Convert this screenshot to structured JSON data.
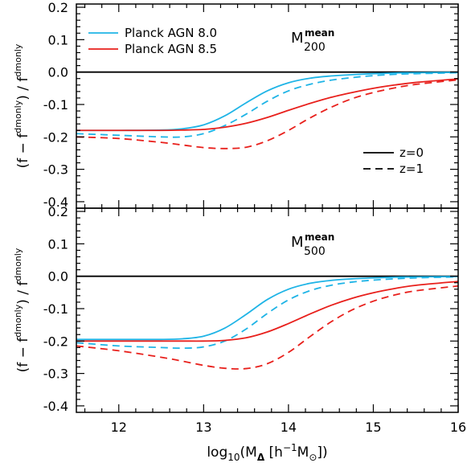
{
  "chart_data": [
    {
      "type": "line",
      "panel_label": {
        "base": "M",
        "sup": "mean",
        "sub": "200"
      },
      "ylabel": "(f − f^dmonly) / f^dmonly",
      "ylabel_parts": {
        "open": "(f − f",
        "sup1": "dmonly",
        "mid": ") / f",
        "sup2": "dmonly"
      },
      "xlim": [
        11.5,
        16.0
      ],
      "ylim": [
        -0.42,
        0.21
      ],
      "yticks": [
        "0.2",
        "0.1",
        "0.0",
        "-0.1",
        "-0.2",
        "-0.3",
        "-0.4"
      ],
      "ytick_values": [
        0.2,
        0.1,
        0.0,
        -0.1,
        -0.2,
        -0.3,
        -0.4
      ],
      "reference_line": 0.0,
      "legend": {
        "models": [
          {
            "label": "Planck AGN 8.0",
            "color": "#1fb4e6"
          },
          {
            "label": "Planck AGN 8.5",
            "color": "#e8201c"
          }
        ],
        "redshifts": [
          {
            "label": "z=0",
            "style": "solid"
          },
          {
            "label": "z=1",
            "style": "dashed"
          }
        ]
      },
      "x": [
        11.5,
        12.0,
        12.5,
        12.75,
        13.0,
        13.25,
        13.5,
        13.75,
        14.0,
        14.25,
        14.5,
        14.75,
        15.0,
        15.25,
        15.5,
        16.0
      ],
      "series": [
        {
          "model": "Planck AGN 8.0",
          "redshift": "z=0",
          "color": "#1fb4e6",
          "dash": "solid",
          "y": [
            -0.18,
            -0.18,
            -0.179,
            -0.175,
            -0.163,
            -0.135,
            -0.095,
            -0.058,
            -0.033,
            -0.019,
            -0.012,
            -0.008,
            -0.005,
            -0.003,
            -0.002,
            -0.001
          ]
        },
        {
          "model": "Planck AGN 8.0",
          "redshift": "z=1",
          "color": "#1fb4e6",
          "dash": "dashed",
          "y": [
            -0.19,
            -0.195,
            -0.2,
            -0.2,
            -0.19,
            -0.165,
            -0.13,
            -0.09,
            -0.058,
            -0.038,
            -0.025,
            -0.017,
            -0.011,
            -0.007,
            -0.005,
            -0.002
          ]
        },
        {
          "model": "Planck AGN 8.5",
          "redshift": "z=0",
          "color": "#e8201c",
          "dash": "solid",
          "y": [
            -0.18,
            -0.18,
            -0.18,
            -0.179,
            -0.177,
            -0.17,
            -0.158,
            -0.14,
            -0.118,
            -0.097,
            -0.078,
            -0.063,
            -0.05,
            -0.04,
            -0.032,
            -0.021
          ]
        },
        {
          "model": "Planck AGN 8.5",
          "redshift": "z=1",
          "color": "#e8201c",
          "dash": "dashed",
          "y": [
            -0.2,
            -0.205,
            -0.217,
            -0.225,
            -0.233,
            -0.236,
            -0.232,
            -0.212,
            -0.18,
            -0.142,
            -0.109,
            -0.082,
            -0.063,
            -0.049,
            -0.038,
            -0.024
          ]
        }
      ]
    },
    {
      "type": "line",
      "panel_label": {
        "base": "M",
        "sup": "mean",
        "sub": "500"
      },
      "ylabel": "(f − f^dmonly) / f^dmonly",
      "ylabel_parts": {
        "open": "(f − f",
        "sup1": "dmonly",
        "mid": ") / f",
        "sup2": "dmonly"
      },
      "xlim": [
        11.5,
        16.0
      ],
      "ylim": [
        -0.42,
        0.21
      ],
      "yticks": [
        "0.2",
        "0.1",
        "0.0",
        "-0.1",
        "-0.2",
        "-0.3",
        "-0.4"
      ],
      "ytick_values": [
        0.2,
        0.1,
        0.0,
        -0.1,
        -0.2,
        -0.3,
        -0.4
      ],
      "xticks": [
        "12",
        "13",
        "14",
        "15",
        "16"
      ],
      "xtick_values": [
        12,
        13,
        14,
        15,
        16
      ],
      "xlabel_parts": {
        "open": "log",
        "sub": "10",
        "mid": "(M",
        "sub2": "Δ",
        "mid2": " [h",
        "sup": "−1",
        "mid3": "M",
        "sub3": "⊙",
        "close": "])"
      },
      "reference_line": 0.0,
      "x": [
        11.5,
        12.0,
        12.5,
        12.75,
        13.0,
        13.25,
        13.5,
        13.75,
        14.0,
        14.25,
        14.5,
        14.75,
        15.0,
        15.25,
        15.5,
        16.0
      ],
      "series": [
        {
          "model": "Planck AGN 8.0",
          "redshift": "z=0",
          "color": "#1fb4e6",
          "dash": "solid",
          "y": [
            -0.195,
            -0.195,
            -0.195,
            -0.193,
            -0.185,
            -0.16,
            -0.118,
            -0.072,
            -0.04,
            -0.022,
            -0.013,
            -0.008,
            -0.005,
            -0.003,
            -0.002,
            -0.001
          ]
        },
        {
          "model": "Planck AGN 8.0",
          "redshift": "z=1",
          "color": "#1fb4e6",
          "dash": "dashed",
          "y": [
            -0.205,
            -0.215,
            -0.22,
            -0.222,
            -0.218,
            -0.2,
            -0.163,
            -0.115,
            -0.073,
            -0.045,
            -0.028,
            -0.018,
            -0.012,
            -0.008,
            -0.005,
            -0.002
          ]
        },
        {
          "model": "Planck AGN 8.5",
          "redshift": "z=0",
          "color": "#e8201c",
          "dash": "solid",
          "y": [
            -0.2,
            -0.2,
            -0.2,
            -0.2,
            -0.2,
            -0.198,
            -0.19,
            -0.172,
            -0.146,
            -0.117,
            -0.09,
            -0.068,
            -0.051,
            -0.038,
            -0.028,
            -0.016
          ]
        },
        {
          "model": "Planck AGN 8.5",
          "redshift": "z=1",
          "color": "#e8201c",
          "dash": "dashed",
          "y": [
            -0.215,
            -0.23,
            -0.25,
            -0.262,
            -0.275,
            -0.284,
            -0.285,
            -0.27,
            -0.235,
            -0.187,
            -0.141,
            -0.104,
            -0.077,
            -0.058,
            -0.045,
            -0.03
          ]
        }
      ]
    }
  ]
}
